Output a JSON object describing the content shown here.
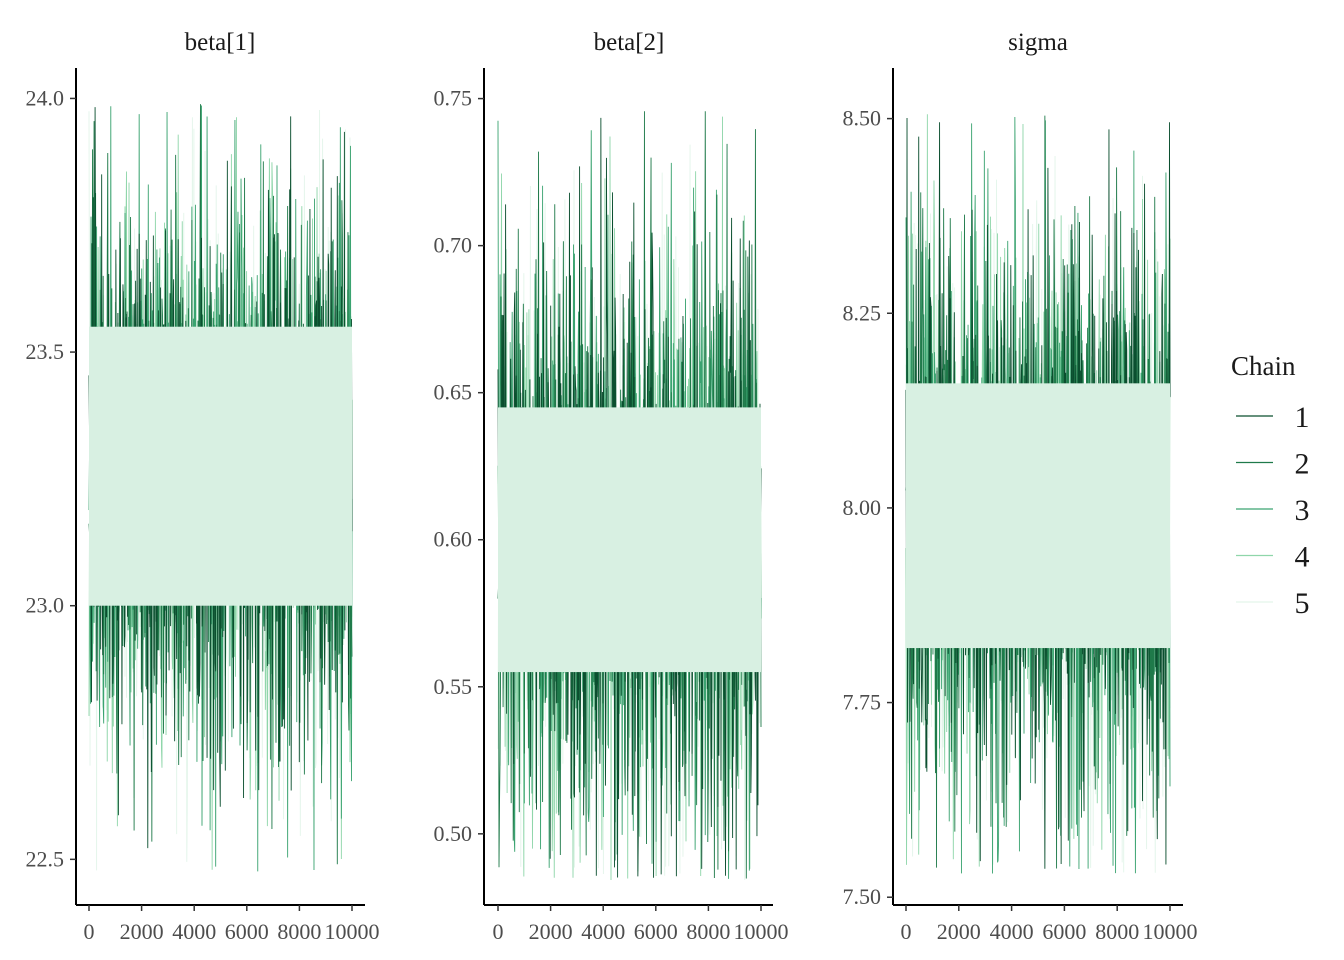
{
  "chart_data": {
    "type": "line",
    "plot_kind": "MCMC trace plot",
    "legend": {
      "title": "Chain",
      "position": "right",
      "entries": [
        "1",
        "2",
        "3",
        "4",
        "5"
      ],
      "colors": [
        "#0b4f2f",
        "#1f7a4a",
        "#3aa370",
        "#8fd6aa",
        "#e3f5ea"
      ]
    },
    "band_color": "#d8f0e2",
    "iterations": 10000,
    "panels": [
      {
        "title": "beta[1]",
        "xlim": [
          0,
          10000
        ],
        "ylim": [
          22.41,
          24.06
        ],
        "x_ticks": [
          0,
          2000,
          4000,
          6000,
          8000,
          10000
        ],
        "x_tick_labels": [
          "0",
          "2000",
          "4000",
          "6000",
          "8000",
          "10000"
        ],
        "y_ticks": [
          22.5,
          23.0,
          23.5,
          24.0
        ],
        "y_tick_labels": [
          "22.5",
          "23.0",
          "23.5",
          "24.0"
        ],
        "center": 23.27,
        "band": [
          23.0,
          23.55
        ],
        "extremes": [
          22.47,
          23.99
        ],
        "spread": 0.28
      },
      {
        "title": "beta[2]",
        "xlim": [
          0,
          10000
        ],
        "ylim": [
          0.4758,
          0.7604
        ],
        "x_ticks": [
          0,
          2000,
          4000,
          6000,
          8000,
          10000
        ],
        "x_tick_labels": [
          "0",
          "2000",
          "4000",
          "6000",
          "8000",
          "10000"
        ],
        "y_ticks": [
          0.5,
          0.55,
          0.6,
          0.65,
          0.7,
          0.75
        ],
        "y_tick_labels": [
          "0.50",
          "0.55",
          "0.60",
          "0.65",
          "0.70",
          "0.75"
        ],
        "center": 0.6,
        "band": [
          0.555,
          0.645
        ],
        "extremes": [
          0.484,
          0.748
        ],
        "spread": 0.05
      },
      {
        "title": "sigma",
        "xlim": [
          0,
          10000
        ],
        "ylim": [
          7.49,
          8.565
        ],
        "x_ticks": [
          0,
          2000,
          4000,
          6000,
          8000,
          10000
        ],
        "x_tick_labels": [
          "0",
          "2000",
          "4000",
          "6000",
          "8000",
          "10000"
        ],
        "y_ticks": [
          7.5,
          7.75,
          8.0,
          8.25,
          8.5
        ],
        "y_tick_labels": [
          "7.50",
          "7.75",
          "8.00",
          "8.25",
          "8.50"
        ],
        "center": 7.99,
        "band": [
          7.82,
          8.16
        ],
        "extremes": [
          7.53,
          8.51
        ],
        "spread": 0.18
      }
    ]
  }
}
